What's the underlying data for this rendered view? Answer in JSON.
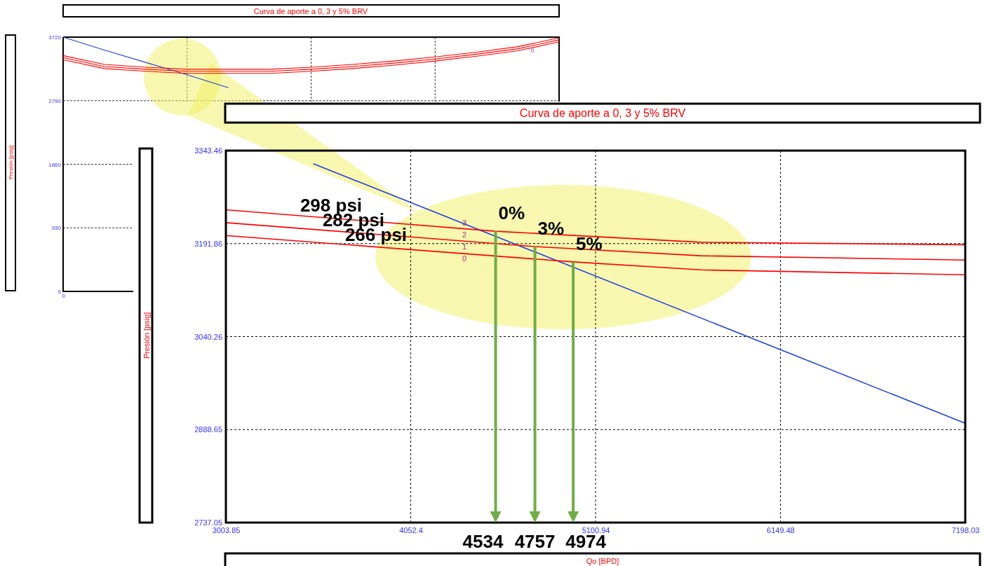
{
  "chart_data": [
    {
      "type": "line",
      "title": "Curva de aporte a 0, 3 y 5% BRV",
      "ylabel": "Presión [psig]",
      "categories": [
        "0",
        null,
        null,
        null,
        null,
        null,
        null,
        null,
        null,
        null,
        null,
        null,
        null
      ],
      "ylim": [
        0,
        3720
      ],
      "yticks": [
        0,
        930,
        1860,
        2790,
        3720
      ],
      "grid": true,
      "series": [
        {
          "color": "#2040e0",
          "values": [
            3720,
            3530,
            3350,
            3170,
            2980,
            null,
            null,
            null,
            null,
            null,
            null,
            null,
            null
          ]
        },
        {
          "color": "#ff0000",
          "values": [
            3450,
            3320,
            3280,
            3250,
            3250,
            3250,
            3280,
            3320,
            3370,
            3430,
            3500,
            3580,
            3710
          ]
        },
        {
          "color": "#ff0000",
          "values": [
            3420,
            3290,
            3250,
            3220,
            3220,
            3220,
            3250,
            3290,
            3340,
            3400,
            3470,
            3550,
            3680
          ]
        },
        {
          "color": "#ff0000",
          "values": [
            3390,
            3260,
            3220,
            3190,
            3190,
            3190,
            3220,
            3260,
            3310,
            3370,
            3440,
            3520,
            3650
          ]
        }
      ],
      "annotations": [
        "0"
      ]
    },
    {
      "type": "line",
      "title": "Curva de aporte a 0, 3 y 5% BRV",
      "xlabel": "Qo [BPD]",
      "ylabel": "Presión [psig]",
      "xlim": [
        3003.85,
        7198.03
      ],
      "xticks": [
        3003.85,
        4052.4,
        5100.94,
        6149.48,
        7198.03
      ],
      "ylim": [
        2737.05,
        3343.46
      ],
      "yticks": [
        2737.05,
        2888.65,
        3040.26,
        3191.86,
        3343.46
      ],
      "grid": true,
      "series": [
        {
          "color": "#2040e0",
          "x": [
            3500,
            7198.03
          ],
          "values": [
            3322,
            2899
          ]
        },
        {
          "name": "298 psi",
          "color": "#ff0000",
          "x": [
            3003.85,
            4534,
            5700,
            7198.03
          ],
          "values": [
            3247,
            3212,
            3194,
            3190
          ]
        },
        {
          "name": "282 psi",
          "color": "#ff0000",
          "x": [
            3003.85,
            4757,
            5700,
            7198.03
          ],
          "values": [
            3226,
            3187,
            3172,
            3165
          ]
        },
        {
          "name": "266 psi",
          "color": "#ff0000",
          "x": [
            3003.85,
            4974,
            5700,
            7198.03
          ],
          "values": [
            3205,
            3162,
            3149,
            3141
          ]
        }
      ],
      "annotations": [
        {
          "text": "0%",
          "x": 4534,
          "y": 3212
        },
        {
          "text": "3%",
          "x": 4757,
          "y": 3187
        },
        {
          "text": "5%",
          "x": 4974,
          "y": 3162
        },
        {
          "text": "4534",
          "x": 4534,
          "y": 3212
        },
        {
          "text": "4757",
          "x": 4757,
          "y": 3187
        },
        {
          "text": "4974",
          "x": 4974,
          "y": 3162
        },
        "3",
        "2",
        "1",
        "0"
      ]
    }
  ]
}
